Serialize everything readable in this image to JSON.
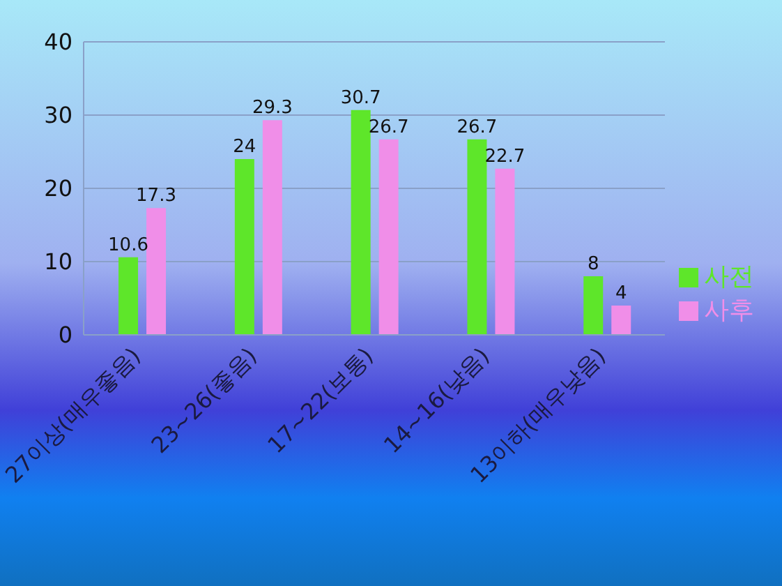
{
  "chart_data": {
    "type": "bar",
    "categories": [
      "27이상(매우좋음)",
      "23~26(좋음)",
      "17~22(보통)",
      "14~16(낮음)",
      "13이하(매우낮음)"
    ],
    "series": [
      {
        "name": "사전",
        "color": "#5ee62a",
        "values": [
          10.6,
          24,
          30.7,
          26.7,
          8
        ]
      },
      {
        "name": "사후",
        "color": "#f08ee8",
        "values": [
          17.3,
          29.3,
          26.7,
          22.7,
          4
        ]
      }
    ],
    "ylim": [
      0,
      40
    ],
    "yticks": [
      0,
      10,
      20,
      30,
      40
    ],
    "grid": "y",
    "legend": "right",
    "data_labels": true
  }
}
